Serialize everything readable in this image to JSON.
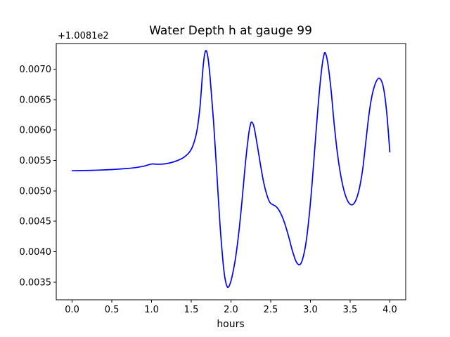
{
  "chart_data": {
    "type": "line",
    "title": "Water Depth h at gauge 99",
    "xlabel": "hours",
    "ylabel": "",
    "y_offset_text": "+1.0081e2",
    "y_offset_value": 100.81,
    "xlim": [
      -0.2,
      4.2
    ],
    "ylim": [
      0.00321,
      0.00742
    ],
    "xticks": [
      "0.0",
      "0.5",
      "1.0",
      "1.5",
      "2.0",
      "2.5",
      "3.0",
      "3.5",
      "4.0"
    ],
    "yticks": [
      "0.0035",
      "0.0040",
      "0.0045",
      "0.0050",
      "0.0055",
      "0.0060",
      "0.0065",
      "0.0070"
    ],
    "grid": false,
    "legend": null,
    "frame_color": "#000000",
    "line_width": 1.7,
    "series": [
      {
        "name": "water depth h at gauge 99",
        "color": "#0000ff",
        "points": [
          [
            0.0,
            0.00533
          ],
          [
            0.1,
            0.005332
          ],
          [
            0.2,
            0.005335
          ],
          [
            0.3,
            0.005339
          ],
          [
            0.4,
            0.005344
          ],
          [
            0.5,
            0.00535
          ],
          [
            0.6,
            0.005358
          ],
          [
            0.7,
            0.005368
          ],
          [
            0.8,
            0.005382
          ],
          [
            0.9,
            0.005405
          ],
          [
            1.0,
            0.00544
          ],
          [
            1.08,
            0.005437
          ],
          [
            1.16,
            0.005442
          ],
          [
            1.25,
            0.005465
          ],
          [
            1.33,
            0.0055
          ],
          [
            1.4,
            0.005545
          ],
          [
            1.47,
            0.005625
          ],
          [
            1.52,
            0.00574
          ],
          [
            1.57,
            0.00598
          ],
          [
            1.61,
            0.00638
          ],
          [
            1.65,
            0.00705
          ],
          [
            1.68,
            0.0073
          ],
          [
            1.71,
            0.00719
          ],
          [
            1.74,
            0.00682
          ],
          [
            1.78,
            0.00615
          ],
          [
            1.82,
            0.00533
          ],
          [
            1.86,
            0.00448
          ],
          [
            1.9,
            0.00383
          ],
          [
            1.925,
            0.00356
          ],
          [
            1.955,
            0.00342
          ],
          [
            1.985,
            0.00346
          ],
          [
            2.02,
            0.00363
          ],
          [
            2.06,
            0.00392
          ],
          [
            2.1,
            0.00433
          ],
          [
            2.14,
            0.00485
          ],
          [
            2.18,
            0.00543
          ],
          [
            2.22,
            0.0059
          ],
          [
            2.24,
            0.00606
          ],
          [
            2.26,
            0.00613
          ],
          [
            2.29,
            0.00605
          ],
          [
            2.33,
            0.00576
          ],
          [
            2.37,
            0.00544
          ],
          [
            2.41,
            0.00515
          ],
          [
            2.45,
            0.00494
          ],
          [
            2.49,
            0.00481
          ],
          [
            2.53,
            0.00477
          ],
          [
            2.57,
            0.00474
          ],
          [
            2.61,
            0.00467
          ],
          [
            2.65,
            0.00456
          ],
          [
            2.69,
            0.00441
          ],
          [
            2.73,
            0.00423
          ],
          [
            2.77,
            0.00403
          ],
          [
            2.81,
            0.00387
          ],
          [
            2.84,
            0.0038
          ],
          [
            2.87,
            0.00379
          ],
          [
            2.9,
            0.00387
          ],
          [
            2.94,
            0.00411
          ],
          [
            2.98,
            0.00453
          ],
          [
            3.02,
            0.0051
          ],
          [
            3.06,
            0.00578
          ],
          [
            3.1,
            0.00644
          ],
          [
            3.14,
            0.00698
          ],
          [
            3.17,
            0.00723
          ],
          [
            3.19,
            0.00726
          ],
          [
            3.22,
            0.00709
          ],
          [
            3.26,
            0.00666
          ],
          [
            3.3,
            0.00609
          ],
          [
            3.34,
            0.00562
          ],
          [
            3.38,
            0.00527
          ],
          [
            3.42,
            0.00502
          ],
          [
            3.46,
            0.00486
          ],
          [
            3.5,
            0.00478
          ],
          [
            3.54,
            0.00478
          ],
          [
            3.58,
            0.00487
          ],
          [
            3.62,
            0.00506
          ],
          [
            3.66,
            0.00537
          ],
          [
            3.7,
            0.00583
          ],
          [
            3.74,
            0.00628
          ],
          [
            3.78,
            0.00659
          ],
          [
            3.82,
            0.00677
          ],
          [
            3.86,
            0.00685
          ],
          [
            3.9,
            0.00679
          ],
          [
            3.93,
            0.00662
          ],
          [
            3.96,
            0.0063
          ],
          [
            3.98,
            0.00599
          ],
          [
            4.0,
            0.00564
          ]
        ]
      }
    ]
  }
}
